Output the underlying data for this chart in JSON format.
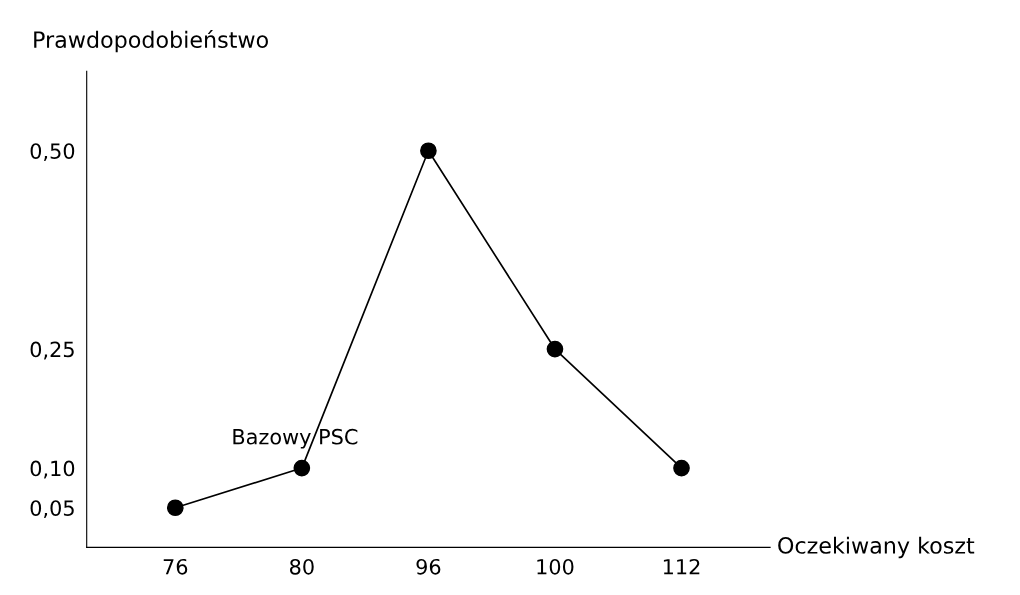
{
  "chart_data": {
    "type": "line",
    "xlabel": "Oczekiwany koszt",
    "ylabel": "Prawdopodobieństwo",
    "categories": [
      "76",
      "80",
      "96",
      "100",
      "112"
    ],
    "series": [
      {
        "color": "#000000",
        "values": [
          0.05,
          0.1,
          0.5,
          0.25,
          0.1
        ]
      }
    ],
    "ylim": [
      0,
      0.6
    ],
    "yticks": [
      {
        "value": 0.05,
        "label": "0,05"
      },
      {
        "value": 0.1,
        "label": "0,10"
      },
      {
        "value": 0.25,
        "label": "0,25"
      },
      {
        "value": 0.5,
        "label": "0,50"
      }
    ],
    "annotations": [
      {
        "text": "Bazowy PSC",
        "x": "80",
        "y": 0.1
      }
    ],
    "marker": "circle",
    "line_style": "solid",
    "grid": false,
    "legend": false
  }
}
